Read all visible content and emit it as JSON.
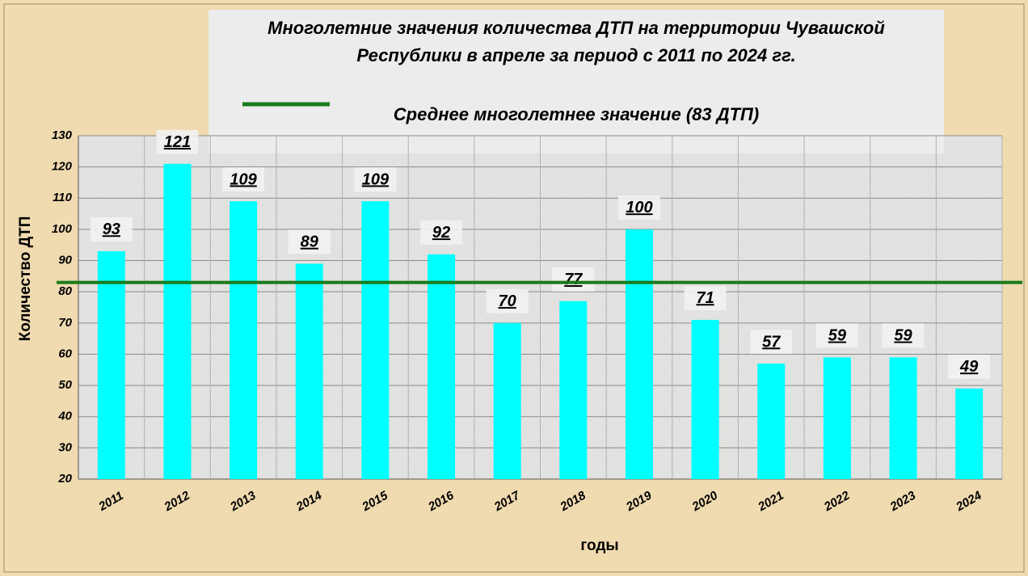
{
  "chart_data": {
    "type": "bar",
    "title": [
      "Многолетние значения количества ДТП на территории Чувашской",
      "Республики в апреле за период с 2011 по 2024 гг."
    ],
    "y_label": "Количество ДТП",
    "x_label": "годы",
    "categories": [
      "2011",
      "2012",
      "2013",
      "2014",
      "2015",
      "2016",
      "2017",
      "2018",
      "2019",
      "2020",
      "2021",
      "2022",
      "2023",
      "2024"
    ],
    "values": [
      93,
      121,
      109,
      89,
      109,
      92,
      70,
      77,
      100,
      71,
      57,
      59,
      59,
      49
    ],
    "color": "#00ffff",
    "average": {
      "name": "Среднее многолетнее значение (83 ДТП)",
      "value": 83,
      "color": "#1a7a1a"
    },
    "ylim": [
      20,
      130
    ],
    "yticks": [
      20,
      30,
      40,
      50,
      60,
      70,
      80,
      90,
      100,
      110,
      120,
      130
    ],
    "grid": true
  }
}
